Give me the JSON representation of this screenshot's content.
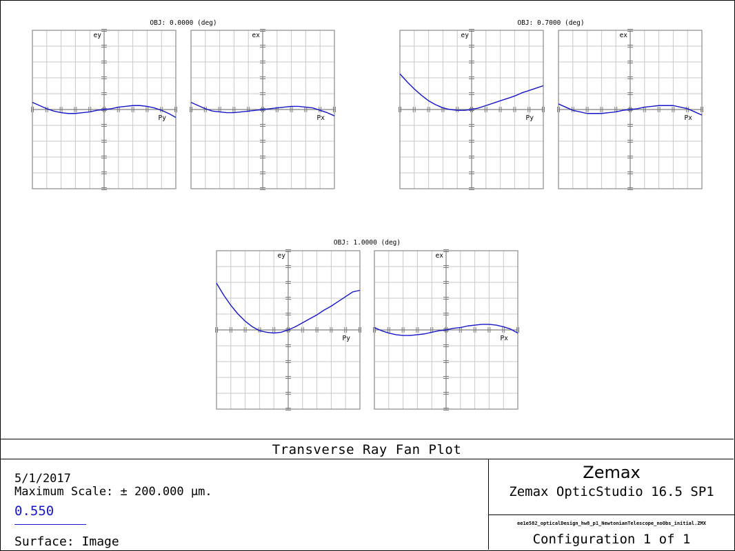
{
  "chart_data": {
    "type": "line",
    "title": "Transverse Ray Fan Plot",
    "max_scale_um": 200,
    "axis_range": [
      -1,
      1
    ],
    "grid": true,
    "line_color": "#1414cc",
    "fields": [
      {
        "label": "OBJ: 0.0000 (deg)",
        "plots": [
          {
            "ylabel": "ey",
            "xlabel": "Py",
            "x": [
              -1,
              -0.9,
              -0.8,
              -0.7,
              -0.6,
              -0.5,
              -0.4,
              -0.3,
              -0.2,
              -0.1,
              0,
              0.1,
              0.2,
              0.3,
              0.4,
              0.5,
              0.6,
              0.7,
              0.8,
              0.9,
              1
            ],
            "y": [
              0.09,
              0.05,
              0.01,
              -0.02,
              -0.04,
              -0.05,
              -0.05,
              -0.04,
              -0.03,
              -0.01,
              0,
              0.01,
              0.03,
              0.04,
              0.05,
              0.05,
              0.04,
              0.02,
              -0.01,
              -0.05,
              -0.1
            ]
          },
          {
            "ylabel": "ex",
            "xlabel": "Px",
            "x": [
              -1,
              -0.9,
              -0.8,
              -0.7,
              -0.6,
              -0.5,
              -0.4,
              -0.3,
              -0.2,
              -0.1,
              0,
              0.1,
              0.2,
              0.3,
              0.4,
              0.5,
              0.6,
              0.7,
              0.8,
              0.9,
              1
            ],
            "y": [
              0.09,
              0.05,
              0.01,
              -0.02,
              -0.03,
              -0.04,
              -0.04,
              -0.03,
              -0.02,
              -0.01,
              0,
              0.01,
              0.02,
              0.03,
              0.04,
              0.04,
              0.03,
              0.02,
              -0.01,
              -0.04,
              -0.08
            ]
          }
        ]
      },
      {
        "label": "OBJ: 0.7000 (deg)",
        "plots": [
          {
            "ylabel": "ey",
            "xlabel": "Py",
            "x": [
              -1,
              -0.9,
              -0.8,
              -0.7,
              -0.6,
              -0.5,
              -0.4,
              -0.3,
              -0.2,
              -0.1,
              0,
              0.1,
              0.2,
              0.3,
              0.4,
              0.5,
              0.6,
              0.7,
              0.8,
              0.9,
              1
            ],
            "y": [
              0.45,
              0.35,
              0.26,
              0.18,
              0.11,
              0.06,
              0.02,
              0,
              -0.01,
              -0.01,
              0,
              0.02,
              0.05,
              0.08,
              0.11,
              0.14,
              0.17,
              0.21,
              0.24,
              0.27,
              0.3
            ]
          },
          {
            "ylabel": "ex",
            "xlabel": "Px",
            "x": [
              -1,
              -0.9,
              -0.8,
              -0.7,
              -0.6,
              -0.5,
              -0.4,
              -0.3,
              -0.2,
              -0.1,
              0,
              0.1,
              0.2,
              0.3,
              0.4,
              0.5,
              0.6,
              0.7,
              0.8,
              0.9,
              1
            ],
            "y": [
              0.07,
              0.03,
              -0.01,
              -0.03,
              -0.05,
              -0.05,
              -0.05,
              -0.04,
              -0.03,
              -0.01,
              0,
              0.01,
              0.03,
              0.04,
              0.05,
              0.05,
              0.05,
              0.03,
              0.01,
              -0.03,
              -0.07
            ]
          }
        ]
      },
      {
        "label": "OBJ: 1.0000 (deg)",
        "plots": [
          {
            "ylabel": "ey",
            "xlabel": "Py",
            "x": [
              -1,
              -0.9,
              -0.8,
              -0.7,
              -0.6,
              -0.5,
              -0.4,
              -0.3,
              -0.2,
              -0.1,
              0,
              0.1,
              0.2,
              0.3,
              0.4,
              0.5,
              0.6,
              0.7,
              0.8,
              0.9,
              1
            ],
            "y": [
              0.59,
              0.44,
              0.31,
              0.2,
              0.11,
              0.04,
              -0.01,
              -0.03,
              -0.04,
              -0.03,
              0,
              0.04,
              0.09,
              0.14,
              0.19,
              0.25,
              0.3,
              0.36,
              0.42,
              0.48,
              0.5
            ]
          },
          {
            "ylabel": "ex",
            "xlabel": "Px",
            "x": [
              -1,
              -0.9,
              -0.8,
              -0.7,
              -0.6,
              -0.5,
              -0.4,
              -0.3,
              -0.2,
              -0.1,
              0,
              0.1,
              0.2,
              0.3,
              0.4,
              0.5,
              0.6,
              0.7,
              0.8,
              0.9,
              1
            ],
            "y": [
              0.03,
              -0.01,
              -0.04,
              -0.06,
              -0.07,
              -0.07,
              -0.06,
              -0.05,
              -0.03,
              -0.01,
              0,
              0.02,
              0.03,
              0.05,
              0.06,
              0.07,
              0.07,
              0.06,
              0.04,
              0.01,
              -0.04
            ]
          }
        ]
      }
    ]
  },
  "footer": {
    "title": "Transverse Ray Fan Plot",
    "date": "5/1/2017",
    "max_scale": "Maximum Scale: ± 200.000 µm.",
    "wavelength": "0.550",
    "surface": "Surface: Image",
    "brand": "Zemax",
    "product": "Zemax OpticStudio 16.5 SP1",
    "file": "ee1e582_opticalDesign_hw8_p1_NewtonianTelescope_noObs_initial.ZMX",
    "configuration": "Configuration 1 of 1"
  }
}
